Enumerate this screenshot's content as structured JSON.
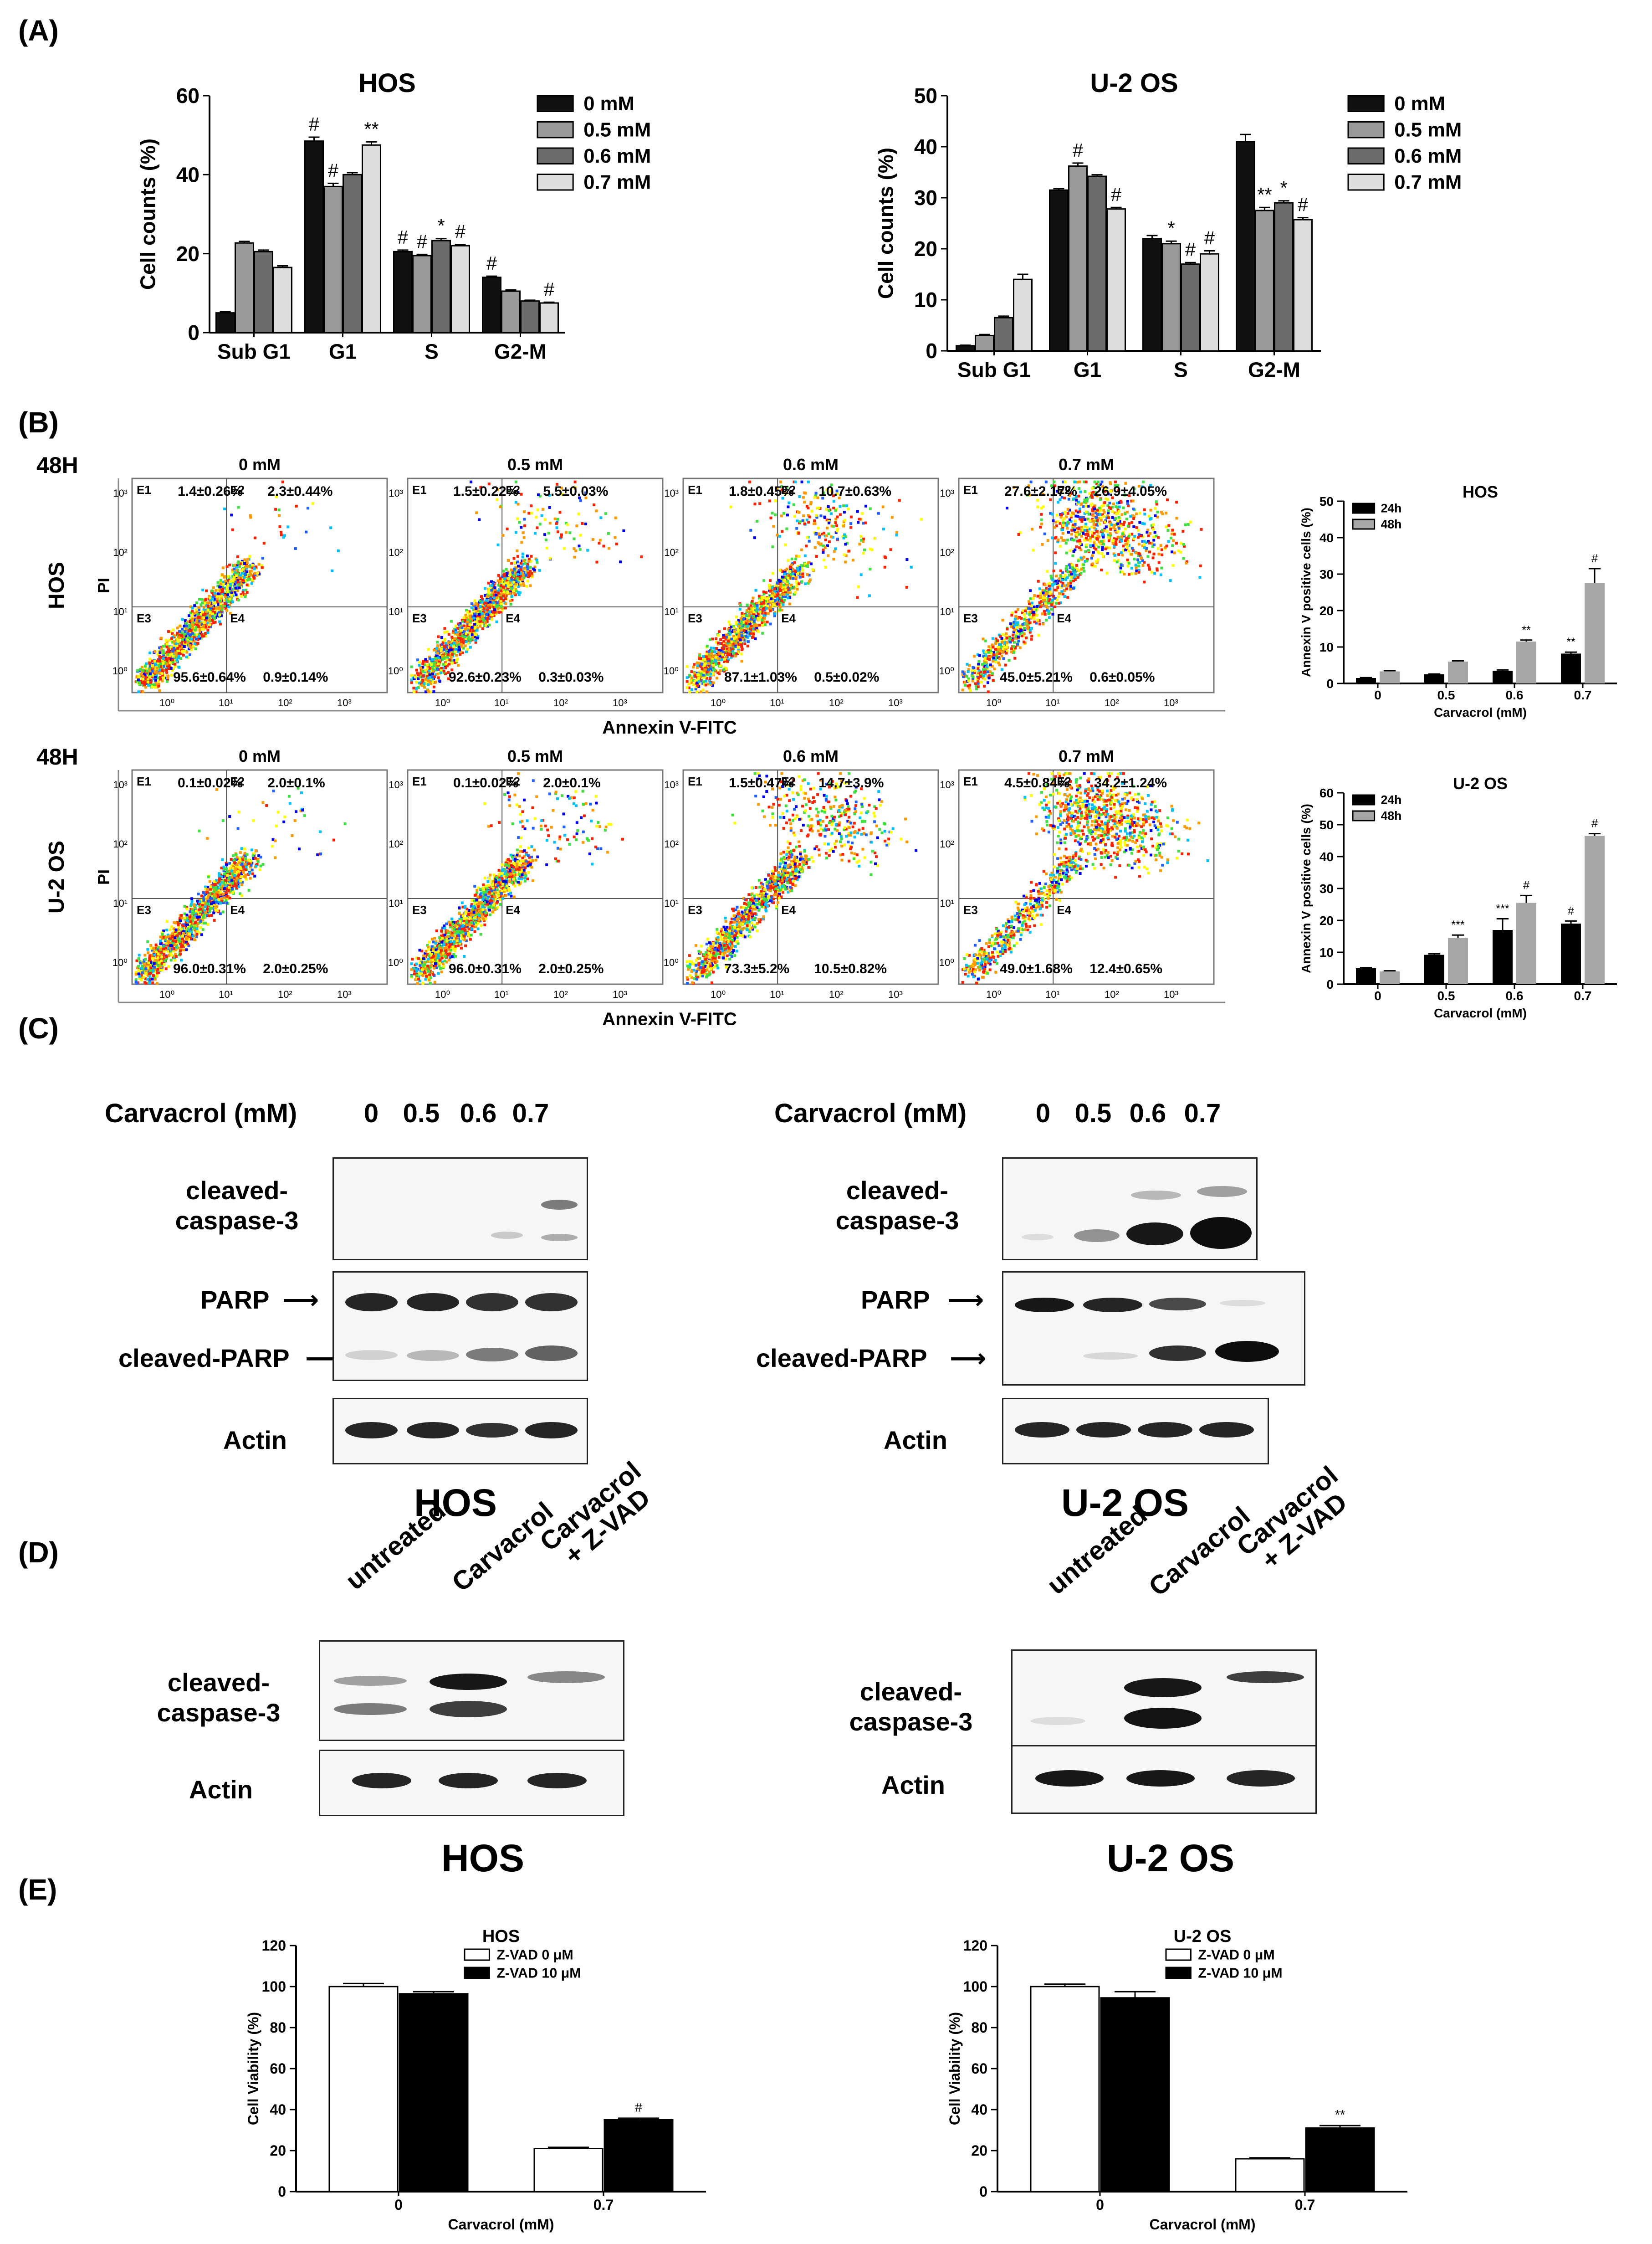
{
  "panel_labels": {
    "A": "(A)",
    "B": "(B)",
    "C": "(C)",
    "D": "(D)",
    "E": "(E)"
  },
  "panel_a": {
    "legend_labels": [
      "0 mM",
      "0.5 mM",
      "0.6 mM",
      "0.7 mM"
    ],
    "colors": [
      "#111111",
      "#9a9a9a",
      "#6b6b6b",
      "#dddddd"
    ]
  },
  "chart_data": [
    {
      "id": "a-hos",
      "type": "bar",
      "title": "HOS",
      "ylabel": "Cell counts (%)",
      "xlabel": "",
      "categories": [
        "Sub G1",
        "G1",
        "S",
        "G2-M"
      ],
      "ylim": [
        0,
        60
      ],
      "yticks": [
        0,
        20,
        40,
        60
      ],
      "series": [
        {
          "name": "0 mM",
          "values": [
            5,
            48.5,
            20.5,
            14
          ],
          "errors": [
            0.3,
            1,
            0.4,
            0.3
          ]
        },
        {
          "name": "0.5 mM",
          "values": [
            22.7,
            37,
            19.5,
            10.5
          ],
          "errors": [
            0.4,
            0.8,
            0.3,
            0.3
          ]
        },
        {
          "name": "0.6 mM",
          "values": [
            20.5,
            40,
            23.3,
            8
          ],
          "errors": [
            0.4,
            0.5,
            0.5,
            0.2
          ]
        },
        {
          "name": "0.7 mM",
          "values": [
            16.5,
            47.5,
            22,
            7.5
          ],
          "errors": [
            0.4,
            0.8,
            0.3,
            0.2
          ]
        }
      ],
      "annotations": [
        [
          "",
          "#",
          "#",
          "#"
        ],
        [
          "",
          "#",
          "#",
          ""
        ],
        [
          "",
          "",
          "*",
          ""
        ],
        [
          "",
          "**",
          "#",
          "#"
        ]
      ]
    },
    {
      "id": "a-u2os",
      "type": "bar",
      "title": "U-2 OS",
      "ylabel": "Cell counts (%)",
      "xlabel": "",
      "categories": [
        "Sub G1",
        "G1",
        "S",
        "G2-M"
      ],
      "ylim": [
        0,
        50
      ],
      "yticks": [
        0,
        10,
        20,
        30,
        40,
        50
      ],
      "series": [
        {
          "name": "0 mM",
          "values": [
            1,
            31.5,
            22,
            41
          ],
          "errors": [
            0.1,
            0.3,
            0.6,
            1.4
          ]
        },
        {
          "name": "0.5 mM",
          "values": [
            3,
            36.2,
            21,
            27.5
          ],
          "errors": [
            0.2,
            0.6,
            0.5,
            0.6
          ]
        },
        {
          "name": "0.6 mM",
          "values": [
            6.5,
            34.2,
            17,
            29
          ],
          "errors": [
            0.3,
            0.3,
            0.3,
            0.4
          ]
        },
        {
          "name": "0.7 mM",
          "values": [
            14,
            27.8,
            19,
            25.7
          ],
          "errors": [
            1,
            0.3,
            0.6,
            0.4
          ]
        }
      ],
      "annotations": [
        [
          "",
          "",
          "",
          ""
        ],
        [
          "",
          "#",
          "*",
          "**"
        ],
        [
          "",
          "",
          "#",
          "*"
        ],
        [
          "",
          "#",
          "#",
          "#"
        ]
      ]
    },
    {
      "id": "b-hos",
      "type": "bar",
      "title": "HOS",
      "ylabel": "Annexin V positive cells (%)",
      "xlabel": "Carvacrol (mM)",
      "categories": [
        "0",
        "0.5",
        "0.6",
        "0.7"
      ],
      "ylim": [
        0,
        50
      ],
      "yticks": [
        0,
        10,
        20,
        30,
        40,
        50
      ],
      "series": [
        {
          "name": "24h",
          "values": [
            1.5,
            2.5,
            3.5,
            8.2
          ],
          "errors": [
            0.1,
            0.1,
            0.2,
            0.4
          ]
        },
        {
          "name": "48h",
          "values": [
            3.3,
            6,
            11.5,
            27.5
          ],
          "errors": [
            0.2,
            0.2,
            0.4,
            4
          ]
        }
      ],
      "annotations": [
        [
          "",
          "",
          "",
          "**"
        ],
        [
          "",
          "",
          "**",
          "#"
        ]
      ]
    },
    {
      "id": "b-u2os",
      "type": "bar",
      "title": "U-2 OS",
      "ylabel": "Annexin V positive cells (%)",
      "xlabel": "Carvacrol (mM)",
      "categories": [
        "0",
        "0.5",
        "0.6",
        "0.7"
      ],
      "ylim": [
        0,
        60
      ],
      "yticks": [
        0,
        10,
        20,
        30,
        40,
        50,
        60
      ],
      "series": [
        {
          "name": "24h",
          "values": [
            5,
            9.2,
            17,
            19
          ],
          "errors": [
            0.2,
            0.3,
            3.5,
            0.8
          ]
        },
        {
          "name": "48h",
          "values": [
            4,
            14.5,
            25.5,
            46.5
          ],
          "errors": [
            0.2,
            0.9,
            2.3,
            0.7
          ]
        }
      ],
      "annotations": [
        [
          "",
          "",
          "***",
          "#"
        ],
        [
          "",
          "***",
          "#",
          "#"
        ]
      ]
    },
    {
      "id": "e-hos",
      "type": "bar",
      "title": "HOS",
      "ylabel": "Cell Viability (%)",
      "xlabel": "Carvacrol (mM)",
      "categories": [
        "0",
        "0.7"
      ],
      "ylim": [
        0,
        120
      ],
      "yticks": [
        0,
        20,
        40,
        60,
        80,
        100,
        120
      ],
      "series": [
        {
          "name": "Z-VAD  0 μM",
          "values": [
            100,
            21
          ],
          "errors": [
            1.5,
            0.6
          ]
        },
        {
          "name": "Z-VAD 10 μM",
          "values": [
            96.5,
            35
          ],
          "errors": [
            1,
            0.8
          ]
        }
      ],
      "annotations": [
        [
          "",
          ""
        ],
        [
          "",
          "#"
        ]
      ]
    },
    {
      "id": "e-u2os",
      "type": "bar",
      "title": "U-2 OS",
      "ylabel": "Cell Viability (%)",
      "xlabel": "Carvacrol (mM)",
      "categories": [
        "0",
        "0.7"
      ],
      "ylim": [
        0,
        120
      ],
      "yticks": [
        0,
        20,
        40,
        60,
        80,
        100,
        120
      ],
      "series": [
        {
          "name": "Z-VAD  0 μM",
          "values": [
            100,
            16
          ],
          "errors": [
            1.2,
            0.5
          ]
        },
        {
          "name": "Z-VAD 10 μM",
          "values": [
            94.5,
            31
          ],
          "errors": [
            3,
            1.2
          ]
        }
      ],
      "annotations": [
        [
          "",
          ""
        ],
        [
          "",
          "**"
        ]
      ]
    }
  ],
  "flow": {
    "time_label": "48H",
    "y_axis_label": "PI",
    "x_axis_label": "Annexin V-FITC",
    "quadrant_names": [
      "E1",
      "E2",
      "E3",
      "E4"
    ],
    "tick_labels": [
      "10⁰",
      "10¹",
      "10²",
      "10³"
    ],
    "rows": [
      {
        "cell": "HOS",
        "plots": [
          {
            "conc": "0 mM",
            "e1": "1.4±0.26%",
            "e2": "2.3±0.44%",
            "e3": "95.6±0.64%",
            "e4": "0.9±0.14%"
          },
          {
            "conc": "0.5 mM",
            "e1": "1.5±0.22%",
            "e2": "5.5±0.03%",
            "e3": "92.6±0.23%",
            "e4": "0.3±0.03%"
          },
          {
            "conc": "0.6 mM",
            "e1": "1.8±0.45%",
            "e2": "10.7±0.63%",
            "e3": "87.1±1.03%",
            "e4": "0.5±0.02%"
          },
          {
            "conc": "0.7 mM",
            "e1": "27.6±2.17%",
            "e2": "26.9±4.05%",
            "e3": "45.0±5.21%",
            "e4": "0.6±0.05%"
          }
        ]
      },
      {
        "cell": "U-2 OS",
        "plots": [
          {
            "conc": "0 mM",
            "e1": "0.1±0.02%",
            "e2": "2.0±0.1%",
            "e3": "96.0±0.31%",
            "e4": "2.0±0.25%"
          },
          {
            "conc": "0.5 mM",
            "e1": "0.1±0.02%",
            "e2": "2.0±0.1%",
            "e3": "96.0±0.31%",
            "e4": "2.0±0.25%"
          },
          {
            "conc": "0.6 mM",
            "e1": "1.5±0.47%",
            "e2": "14.7±3.9%",
            "e3": "73.3±5.2%",
            "e4": "10.5±0.82%"
          },
          {
            "conc": "0.7 mM",
            "e1": "4.5±0.84%",
            "e2": "34.2±1.24%",
            "e3": "49.0±1.68%",
            "e4": "12.4±0.65%"
          }
        ]
      }
    ]
  },
  "panel_c": {
    "header": "Carvacrol (mM)",
    "lanes": [
      "0",
      "0.5",
      "0.6",
      "0.7"
    ],
    "labels": {
      "cc3": "cleaved-\ncaspase-3",
      "parp": "PARP",
      "cparp": "cleaved-PARP",
      "actin": "Actin"
    },
    "cells": [
      "HOS",
      "U-2 OS"
    ]
  },
  "panel_d": {
    "lanes": [
      "untreated",
      "Carvacrol",
      "Carvacrol\n+ Z-VAD"
    ],
    "labels": {
      "cc3": "cleaved-\ncaspase-3",
      "actin": "Actin"
    },
    "cells": [
      "HOS",
      "U-2 OS"
    ]
  }
}
